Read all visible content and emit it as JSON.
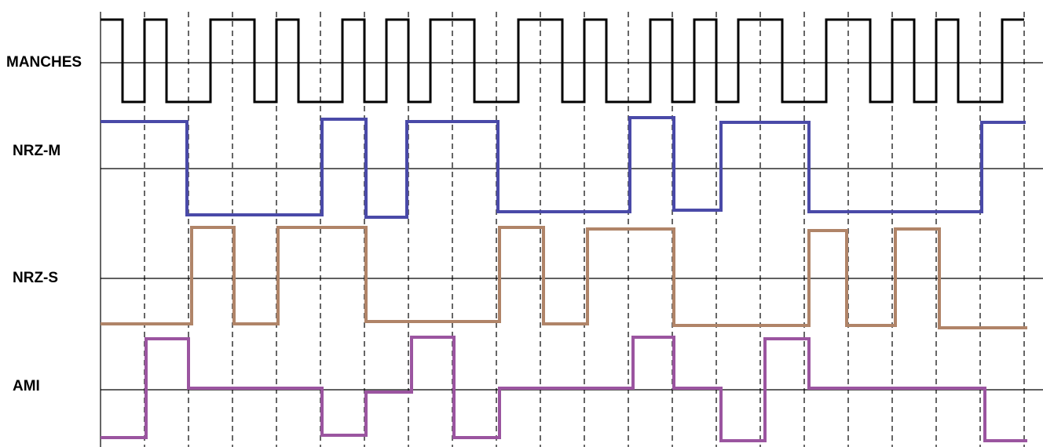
{
  "labels": [
    "MANCHES",
    "NRZ-M",
    "NRZ-S",
    "AMI"
  ]
}
